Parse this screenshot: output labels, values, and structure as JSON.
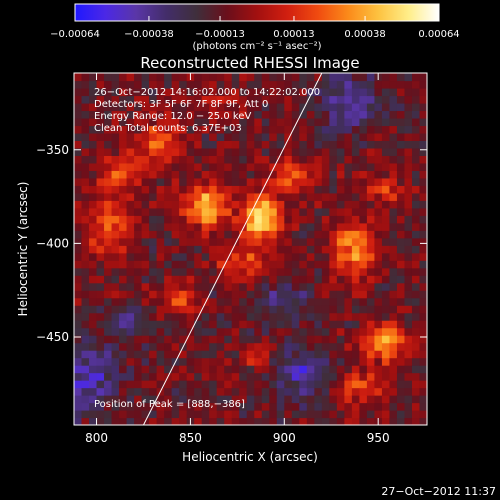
{
  "chart_data": {
    "type": "heatmap",
    "title": "Reconstructed RHESSI Image",
    "xlabel": "Heliocentric X (arcsec)",
    "ylabel": "Heliocentric Y (arcsec)",
    "xlim": [
      788,
      976
    ],
    "ylim": [
      -497,
      -309
    ],
    "x_ticks": [
      {
        "value": 800,
        "label": "800"
      },
      {
        "value": 850,
        "label": "850"
      },
      {
        "value": 900,
        "label": "900"
      },
      {
        "value": 950,
        "label": "950"
      }
    ],
    "y_ticks": [
      {
        "value": -350,
        "label": "−350"
      },
      {
        "value": -400,
        "label": "−400"
      },
      {
        "value": -450,
        "label": "−450"
      }
    ],
    "colorbar": {
      "range": [
        -0.00064,
        0.00064
      ],
      "ticks": [
        {
          "value": -0.00064,
          "label": "−0.00064"
        },
        {
          "value": -0.00038,
          "label": "−0.00038"
        },
        {
          "value": -0.00013,
          "label": "−0.00013"
        },
        {
          "value": 0.00013,
          "label": "0.00013"
        },
        {
          "value": 0.00038,
          "label": "0.00038"
        },
        {
          "value": 0.00064,
          "label": "0.00064"
        }
      ],
      "units": "(photons cm⁻² s⁻¹ asec⁻²)"
    },
    "annotations": [
      "26−Oct−2012 14:16:02.000 to 14:22:02.000",
      "Detectors: 3F 5F 6F 7F 8F 9F, Att 0",
      "Energy Range: 12.0 − 25.0 keV",
      "Clean     Total counts: 6.37E+03"
    ],
    "peak_label": "Position of Peak = [888,−386]",
    "peak": [
      888,
      -386
    ],
    "limb_line": [
      [
        825,
        -497
      ],
      [
        920,
        -309
      ]
    ],
    "sources": [
      {
        "x": 888,
        "y": -386,
        "sx": 7,
        "sy": 9,
        "amp": 0.00064
      },
      {
        "x": 858,
        "y": -380,
        "sx": 9,
        "sy": 8,
        "amp": 0.00052
      },
      {
        "x": 905,
        "y": -363,
        "sx": 8,
        "sy": 7,
        "amp": 0.00032
      },
      {
        "x": 937,
        "y": -404,
        "sx": 8,
        "sy": 11,
        "amp": 0.00044
      },
      {
        "x": 953,
        "y": -452,
        "sx": 8,
        "sy": 7,
        "amp": 0.00048
      },
      {
        "x": 834,
        "y": -347,
        "sx": 9,
        "sy": 9,
        "amp": 0.00034
      },
      {
        "x": 812,
        "y": -362,
        "sx": 7,
        "sy": 7,
        "amp": 0.0003
      },
      {
        "x": 808,
        "y": -392,
        "sx": 9,
        "sy": 12,
        "amp": 0.00034
      },
      {
        "x": 877,
        "y": -410,
        "sx": 11,
        "sy": 6,
        "amp": 0.00028
      },
      {
        "x": 843,
        "y": -430,
        "sx": 7,
        "sy": 6,
        "amp": 0.00026
      },
      {
        "x": 953,
        "y": -372,
        "sx": 9,
        "sy": 6,
        "amp": 0.00024
      },
      {
        "x": 885,
        "y": -460,
        "sx": 7,
        "sy": 5,
        "amp": 0.00022
      },
      {
        "x": 940,
        "y": -476,
        "sx": 11,
        "sy": 7,
        "amp": 0.00028
      },
      {
        "x": 865,
        "y": -325,
        "sx": 10,
        "sy": 6,
        "amp": 0.00014
      },
      {
        "x": 815,
        "y": -440,
        "sx": 6,
        "sy": 5,
        "amp": -0.00022
      },
      {
        "x": 795,
        "y": -470,
        "sx": 12,
        "sy": 14,
        "amp": -0.0003
      },
      {
        "x": 910,
        "y": -470,
        "sx": 12,
        "sy": 10,
        "amp": -0.0003
      },
      {
        "x": 935,
        "y": -325,
        "sx": 12,
        "sy": 10,
        "amp": -0.0003
      },
      {
        "x": 900,
        "y": -430,
        "sx": 10,
        "sy": 8,
        "amp": -0.0002
      }
    ]
  },
  "footer": {
    "timestamp": "27−Oct−2012 11:37"
  },
  "colors": {
    "background": "#000000",
    "text": "#ffffff",
    "colormap": [
      "#1f18ff",
      "#4b28e6",
      "#5a36a8",
      "#432d6a",
      "#3f2f3c",
      "#6a0f1b",
      "#a21010",
      "#d11f10",
      "#f04b10",
      "#fb8a1a",
      "#fdc240",
      "#ffee8a",
      "#ffffff"
    ]
  }
}
